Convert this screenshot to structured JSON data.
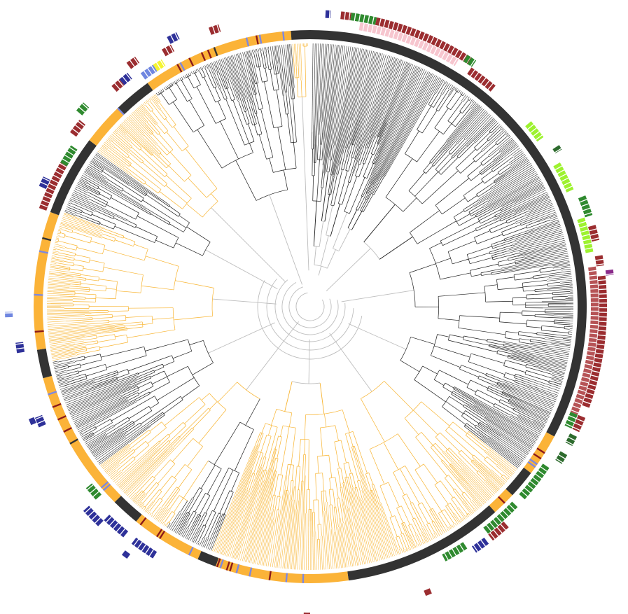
{
  "figure": {
    "type": "circular-phylogenetic-tree",
    "orientation": "radial",
    "title": "",
    "labels_printed": false
  },
  "colors": {
    "background": "#ffffff",
    "ring_gap": "#ffffff",
    "branch_orange": "#f8b430",
    "branch_black": "#1e1e1e",
    "branch_grey": "#bdbdbd",
    "clade_black": "#333333",
    "clade_orange": "#fbb338",
    "tip_blue": "#7d88e0",
    "tip_darkred": "#8b1a1a",
    "outer_darkred": "#9b2d30",
    "outer_pink": "#f7c6cf",
    "outer_green": "#2f8a2f",
    "outer_lime": "#9df22f",
    "outer_navy": "#2e3199",
    "outer_purple": "#8a2a8a",
    "outer_yellow": "#f5f530",
    "outer_rose": "#b65356",
    "outer_cornflower": "#6f86e0",
    "outer_darkgreen": "#2d6b2d"
  },
  "clade_ring": [
    {
      "group": "black",
      "from_deg": 0,
      "to_deg": 118
    },
    {
      "group": "orange",
      "from_deg": 118,
      "to_deg": 127
    },
    {
      "group": "black",
      "from_deg": 127,
      "to_deg": 133
    },
    {
      "group": "orange",
      "from_deg": 133,
      "to_deg": 138
    },
    {
      "group": "black",
      "from_deg": 138,
      "to_deg": 172
    },
    {
      "group": "orange",
      "from_deg": 172,
      "to_deg": 200
    },
    {
      "group": "black",
      "from_deg": 200,
      "to_deg": 204
    },
    {
      "group": "orange",
      "from_deg": 204,
      "to_deg": 219
    },
    {
      "group": "black",
      "from_deg": 219,
      "to_deg": 225
    },
    {
      "group": "orange",
      "from_deg": 225,
      "to_deg": 255
    },
    {
      "group": "black",
      "from_deg": 255,
      "to_deg": 261
    },
    {
      "group": "orange",
      "from_deg": 261,
      "to_deg": 290
    },
    {
      "group": "black",
      "from_deg": 290,
      "to_deg": 307
    },
    {
      "group": "orange",
      "from_deg": 307,
      "to_deg": 316
    },
    {
      "group": "black",
      "from_deg": 316,
      "to_deg": 324
    },
    {
      "group": "orange",
      "from_deg": 324,
      "to_deg": 356
    },
    {
      "group": "black",
      "from_deg": 356,
      "to_deg": 360
    }
  ],
  "branch_sectors": [
    {
      "group": "black",
      "from_deg": 0,
      "to_deg": 128
    },
    {
      "group": "orange",
      "from_deg": 128,
      "to_deg": 202
    },
    {
      "group": "black",
      "from_deg": 202,
      "to_deg": 213
    },
    {
      "group": "orange",
      "from_deg": 213,
      "to_deg": 233
    },
    {
      "group": "black",
      "from_deg": 233,
      "to_deg": 258
    },
    {
      "group": "orange",
      "from_deg": 258,
      "to_deg": 291
    },
    {
      "group": "black",
      "from_deg": 291,
      "to_deg": 306
    },
    {
      "group": "orange",
      "from_deg": 306,
      "to_deg": 324
    },
    {
      "group": "black",
      "from_deg": 324,
      "to_deg": 356
    },
    {
      "group": "orange",
      "from_deg": 356,
      "to_deg": 360
    }
  ],
  "outer_annotations": [
    {
      "color_key": "outer_navy",
      "from_deg": 3,
      "to_deg": 4,
      "track": 1
    },
    {
      "color_key": "outer_darkred",
      "from_deg": 6,
      "to_deg": 8,
      "track": 1
    },
    {
      "color_key": "outer_green",
      "from_deg": 8,
      "to_deg": 13,
      "track": 1
    },
    {
      "color_key": "outer_darkred",
      "from_deg": 13,
      "to_deg": 33,
      "track": 1
    },
    {
      "color_key": "outer_pink",
      "from_deg": 10,
      "to_deg": 31,
      "track": 0
    },
    {
      "color_key": "outer_green",
      "from_deg": 32,
      "to_deg": 34,
      "track": 1
    },
    {
      "color_key": "outer_darkred",
      "from_deg": 34,
      "to_deg": 40,
      "track": 0
    },
    {
      "color_key": "outer_lime",
      "from_deg": 50,
      "to_deg": 54,
      "track": 0
    },
    {
      "color_key": "outer_darkgreen",
      "from_deg": 57,
      "to_deg": 58,
      "track": 1
    },
    {
      "color_key": "outer_lime",
      "from_deg": 60,
      "to_deg": 66,
      "track": 0
    },
    {
      "color_key": "outer_green",
      "from_deg": 68,
      "to_deg": 72,
      "track": 1
    },
    {
      "color_key": "outer_lime",
      "from_deg": 72,
      "to_deg": 79,
      "track": 0
    },
    {
      "color_key": "outer_darkred",
      "from_deg": 74,
      "to_deg": 77,
      "track": 1
    },
    {
      "color_key": "outer_darkred",
      "from_deg": 80,
      "to_deg": 82,
      "track": 1
    },
    {
      "color_key": "outer_rose",
      "from_deg": 82,
      "to_deg": 112,
      "track": 0
    },
    {
      "color_key": "outer_darkred",
      "from_deg": 84,
      "to_deg": 110,
      "track": 1
    },
    {
      "color_key": "outer_purple",
      "from_deg": 83,
      "to_deg": 84,
      "track": 2
    },
    {
      "color_key": "outer_green",
      "from_deg": 112,
      "to_deg": 115,
      "track": 0
    },
    {
      "color_key": "outer_darkred",
      "from_deg": 112,
      "to_deg": 115,
      "track": 1
    },
    {
      "color_key": "outer_darkgreen",
      "from_deg": 116,
      "to_deg": 118,
      "track": 1
    },
    {
      "color_key": "outer_darkgreen",
      "from_deg": 120,
      "to_deg": 122,
      "track": 1
    },
    {
      "color_key": "outer_green",
      "from_deg": 124,
      "to_deg": 132,
      "track": 0
    },
    {
      "color_key": "outer_green",
      "from_deg": 134,
      "to_deg": 142,
      "track": 0
    },
    {
      "color_key": "outer_darkred",
      "from_deg": 138,
      "to_deg": 142,
      "track": 1
    },
    {
      "color_key": "outer_navy",
      "from_deg": 143,
      "to_deg": 146,
      "track": 1
    },
    {
      "color_key": "outer_green",
      "from_deg": 147,
      "to_deg": 152,
      "track": 0
    },
    {
      "color_key": "outer_navy",
      "from_deg": 212,
      "to_deg": 217,
      "track": 1
    },
    {
      "color_key": "outer_navy",
      "from_deg": 219,
      "to_deg": 224,
      "track": 1
    },
    {
      "color_key": "outer_navy",
      "from_deg": 224,
      "to_deg": 228,
      "track": 2
    },
    {
      "color_key": "outer_green",
      "from_deg": 228,
      "to_deg": 231,
      "track": 0
    },
    {
      "color_key": "outer_navy",
      "from_deg": 246,
      "to_deg": 248,
      "track": 1
    },
    {
      "color_key": "outer_navy",
      "from_deg": 261,
      "to_deg": 263,
      "track": 1
    },
    {
      "color_key": "outer_cornflower",
      "from_deg": 268,
      "to_deg": 269,
      "track": 2
    },
    {
      "color_key": "outer_darkred",
      "from_deg": 290,
      "to_deg": 300,
      "track": 0
    },
    {
      "color_key": "outer_navy",
      "from_deg": 294,
      "to_deg": 296,
      "track": 1
    },
    {
      "color_key": "outer_green",
      "from_deg": 300,
      "to_deg": 304,
      "track": 0
    },
    {
      "color_key": "outer_darkred",
      "from_deg": 306,
      "to_deg": 309,
      "track": 1
    },
    {
      "color_key": "outer_green",
      "from_deg": 310,
      "to_deg": 312,
      "track": 2
    },
    {
      "color_key": "outer_darkred",
      "from_deg": 318,
      "to_deg": 320,
      "track": 1
    },
    {
      "color_key": "outer_navy",
      "from_deg": 320,
      "to_deg": 322,
      "track": 1
    },
    {
      "color_key": "outer_darkred",
      "from_deg": 323,
      "to_deg": 325,
      "track": 2
    },
    {
      "color_key": "outer_cornflower",
      "from_deg": 324,
      "to_deg": 327,
      "track": 0
    },
    {
      "color_key": "outer_yellow",
      "from_deg": 327,
      "to_deg": 329,
      "track": 0
    },
    {
      "color_key": "outer_darkred",
      "from_deg": 330,
      "to_deg": 332,
      "track": 1
    },
    {
      "color_key": "outer_navy",
      "from_deg": 332,
      "to_deg": 334,
      "track": 2
    },
    {
      "color_key": "outer_darkred",
      "from_deg": 340,
      "to_deg": 342,
      "track": 1
    }
  ],
  "outliers": [
    {
      "color_key": "outer_navy",
      "angle_deg": 271,
      "track": 4
    },
    {
      "color_key": "outer_navy",
      "angle_deg": 277,
      "track": 4
    },
    {
      "color_key": "outer_darkred",
      "angle_deg": 180,
      "track": 3
    },
    {
      "color_key": "outer_darkred",
      "angle_deg": 157,
      "track": 3
    },
    {
      "color_key": "outer_navy",
      "angle_deg": 247,
      "track": 2
    },
    {
      "color_key": "outer_navy",
      "angle_deg": 216,
      "track": 3
    }
  ]
}
